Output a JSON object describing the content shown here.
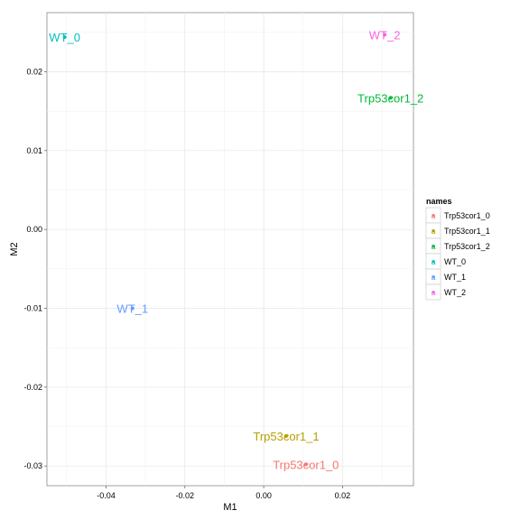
{
  "chart_data": {
    "type": "scatter",
    "xlabel": "M1",
    "ylabel": "M2",
    "xlim": [
      -0.055,
      0.038
    ],
    "ylim": [
      -0.0325,
      0.0275
    ],
    "x_ticks": [
      -0.04,
      -0.02,
      0.0,
      0.02
    ],
    "x_tick_labels": [
      "-0.04",
      "-0.02",
      "0.00",
      "0.02"
    ],
    "y_ticks": [
      -0.03,
      -0.02,
      -0.01,
      0.0,
      0.01,
      0.02
    ],
    "y_tick_labels": [
      "-0.03",
      "-0.02",
      "-0.01",
      "0.00",
      "0.01",
      "0.02"
    ],
    "grid": true,
    "legend_title": "names",
    "legend_position": "right",
    "points": [
      {
        "name": "Trp53cor1_0",
        "x": 0.0107,
        "y": -0.0298,
        "color": "#F8766D"
      },
      {
        "name": "Trp53cor1_1",
        "x": 0.0057,
        "y": -0.0262,
        "color": "#B79F00"
      },
      {
        "name": "Trp53cor1_2",
        "x": 0.0322,
        "y": 0.0167,
        "color": "#00BA38"
      },
      {
        "name": "WT_0",
        "x": -0.0505,
        "y": 0.0244,
        "color": "#00BFC4"
      },
      {
        "name": "WT_1",
        "x": -0.0333,
        "y": -0.01,
        "color": "#619CFF"
      },
      {
        "name": "WT_2",
        "x": 0.0307,
        "y": 0.0247,
        "color": "#F564E3"
      }
    ]
  }
}
